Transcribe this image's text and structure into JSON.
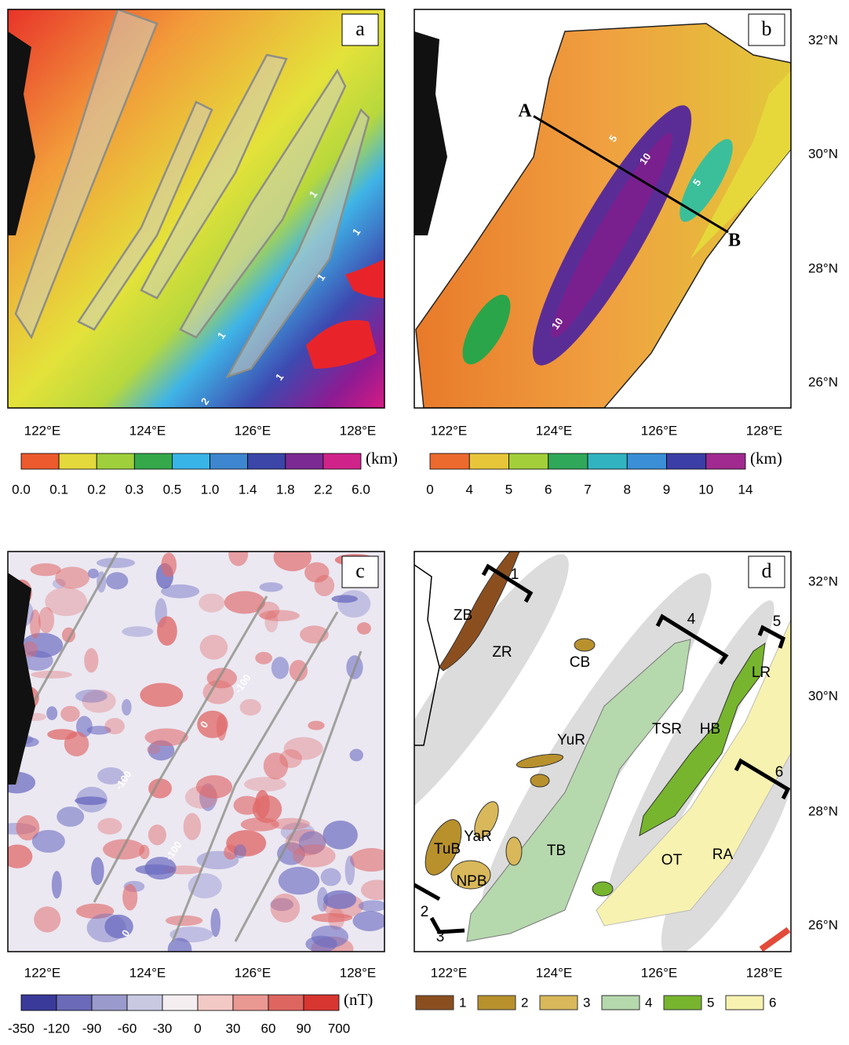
{
  "panels": [
    {
      "label": "a",
      "colorbar": {
        "ticks": [
          "0.0",
          "0.1",
          "0.2",
          "0.3",
          "0.5",
          "1.0",
          "1.4",
          "1.8",
          "2.2",
          "6.0"
        ],
        "unit": "(km)"
      },
      "contour_labels": [
        "1",
        "1",
        "1",
        "1",
        "1",
        "2"
      ]
    },
    {
      "label": "b",
      "colorbar": {
        "ticks": [
          "0",
          "4",
          "5",
          "6",
          "7",
          "8",
          "9",
          "10",
          "14"
        ],
        "unit": "(km)"
      },
      "contour_labels": [
        "5",
        "10",
        "5",
        "10"
      ],
      "profile": [
        "A",
        "B"
      ]
    },
    {
      "label": "c",
      "colorbar": {
        "ticks": [
          "-350",
          "-120",
          "-90",
          "-60",
          "-30",
          "0",
          "30",
          "60",
          "90",
          "700"
        ],
        "unit": "(nT)"
      },
      "contour_labels": [
        "-100",
        "-100",
        "-100",
        "0",
        "0"
      ]
    },
    {
      "label": "d",
      "features": [
        "ZB",
        "ZR",
        "CB",
        "YuR",
        "TSR",
        "HB",
        "LR",
        "TuB",
        "YaR",
        "NPB",
        "TB",
        "OT",
        "RA"
      ],
      "profiles": [
        "1",
        "4",
        "5",
        "6",
        "2",
        "3"
      ],
      "legend": [
        "1",
        "2",
        "3",
        "4",
        "5",
        "6"
      ]
    }
  ],
  "lon_labels": [
    "122°E",
    "124°E",
    "126°E",
    "128°E"
  ],
  "lat_labels": [
    "32°N",
    "30°N",
    "28°N",
    "26°N"
  ]
}
